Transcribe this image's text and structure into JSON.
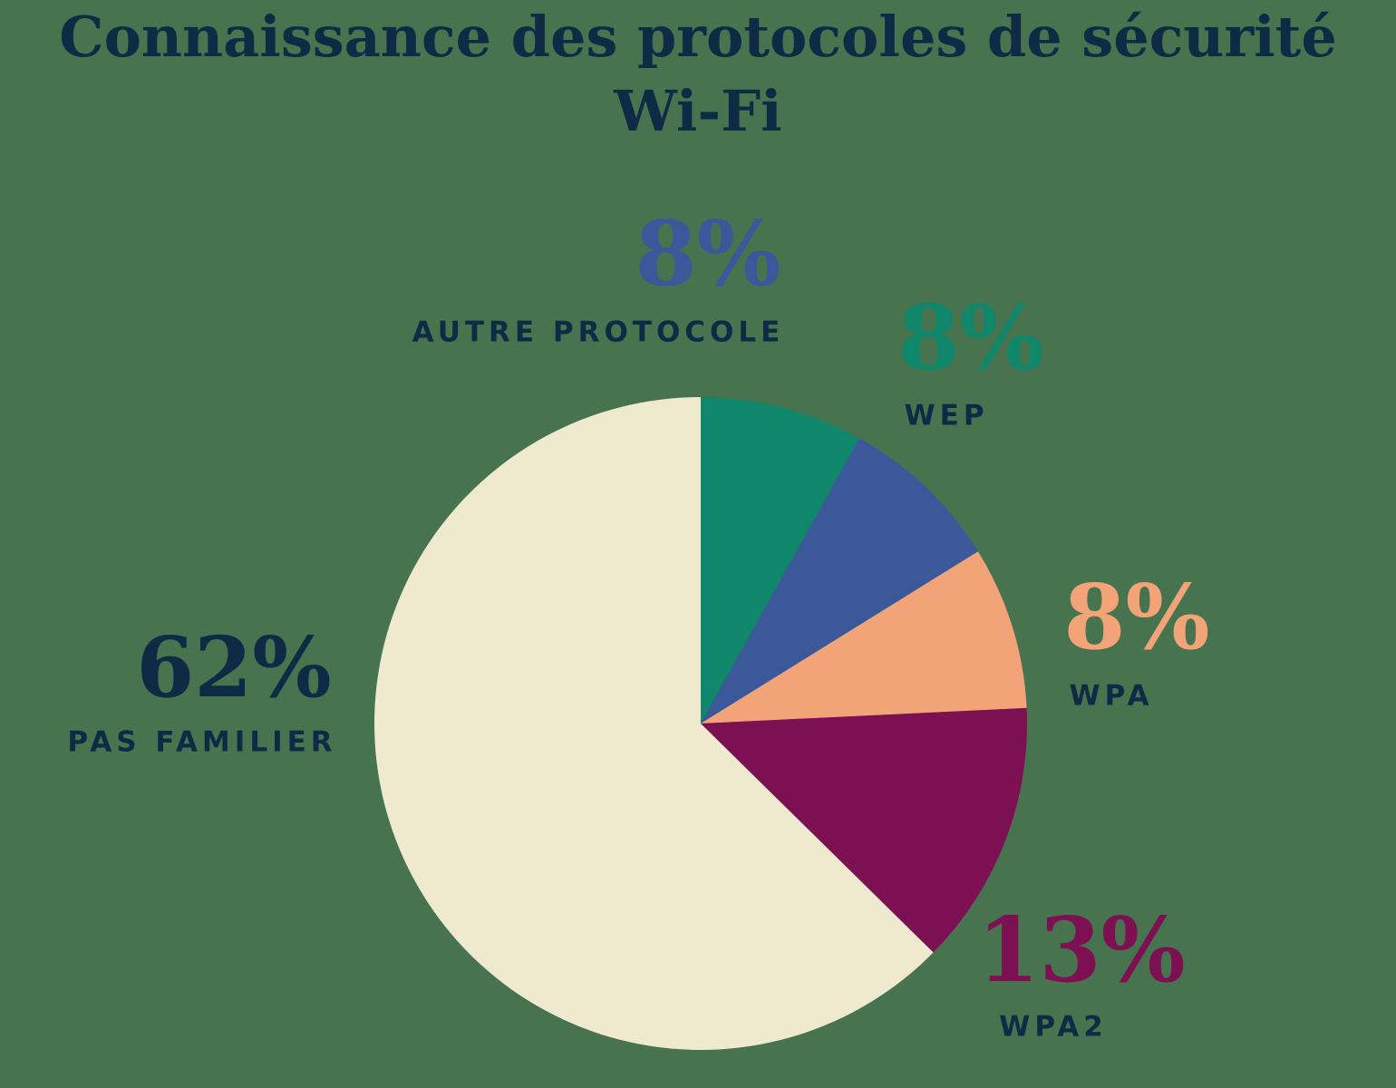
{
  "page": {
    "background_color": "#47734E",
    "text_color": "#0E2B45"
  },
  "title": {
    "line1": "Connaissance des protocoles de sécurité",
    "line2": "Wi-Fi",
    "color": "#0E2B45"
  },
  "chart_data": {
    "type": "pie",
    "title": "Connaissance des protocoles de sécurité Wi-Fi",
    "unit": "%",
    "start_angle_deg": -90,
    "direction": "clockwise",
    "legend_position": "labels-around-pie",
    "slices": [
      {
        "label": "WEP",
        "value": 8,
        "pct_text": "8%",
        "color": "#10866A",
        "pct_color": "#10866A"
      },
      {
        "label": "AUTRE PROTOCOLE",
        "value": 8,
        "pct_text": "8%",
        "color": "#3B589B",
        "pct_color": "#3B589B"
      },
      {
        "label": "WPA",
        "value": 8,
        "pct_text": "8%",
        "color": "#F2A478",
        "pct_color": "#F2A478"
      },
      {
        "label": "WPA2",
        "value": 13,
        "pct_text": "13%",
        "color": "#7D1053",
        "pct_color": "#7D1053"
      },
      {
        "label": "PAS FAMILIER",
        "value": 62,
        "pct_text": "62%",
        "color": "#EFEACF",
        "pct_color": "#0E2B45"
      }
    ],
    "label_text_color": "#0E2B45"
  }
}
